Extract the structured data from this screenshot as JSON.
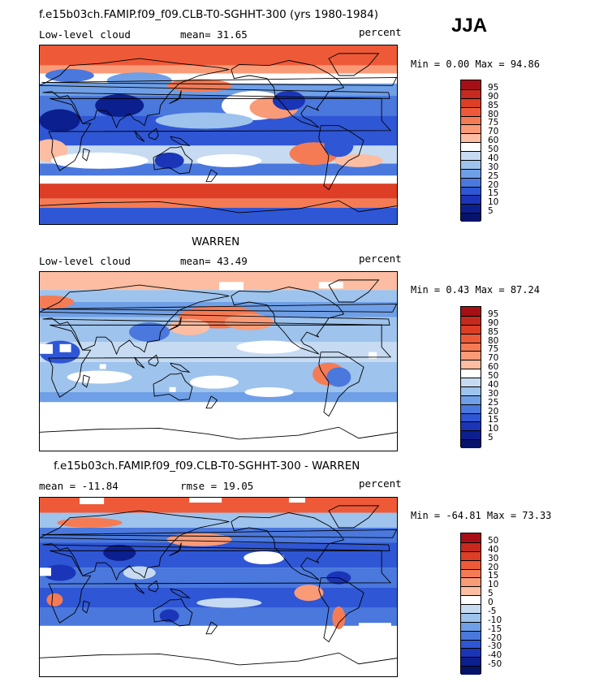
{
  "season": "JJA",
  "panels": [
    {
      "title": "f.e15b03ch.FAMIP.f09_f09.CLB-T0-SGHHT-300 (yrs 1980-1984)",
      "left_label": "Low-level cloud",
      "mid_label": "mean=  31.65",
      "right_label": "percent",
      "min_max": "Min =   0.00 Max =  94.86",
      "colorbar": {
        "labels": [
          "95",
          "90",
          "85",
          "80",
          "75",
          "70",
          "60",
          "50",
          "40",
          "30",
          "25",
          "20",
          "15",
          "10",
          "5"
        ],
        "colors": [
          "#a50f15",
          "#c62a1e",
          "#dd3e25",
          "#ee5a38",
          "#f57b55",
          "#fa9b78",
          "#fcbda2",
          "#ffffff",
          "#c6dbf2",
          "#9ec3ec",
          "#6f9fe6",
          "#4a78dd",
          "#2f56d4",
          "#1b35b8",
          "#0c1f8f",
          "#06136b"
        ]
      },
      "map_style": "model"
    },
    {
      "title": "WARREN",
      "left_label": "Low-level cloud",
      "mid_label": "mean=  43.49",
      "right_label": "percent",
      "min_max": "Min =   0.43 Max =  87.24",
      "colorbar": {
        "labels": [
          "95",
          "90",
          "85",
          "80",
          "75",
          "70",
          "60",
          "50",
          "40",
          "30",
          "25",
          "20",
          "15",
          "10",
          "5"
        ],
        "colors": [
          "#a50f15",
          "#c62a1e",
          "#dd3e25",
          "#ee5a38",
          "#f57b55",
          "#fa9b78",
          "#fcbda2",
          "#ffffff",
          "#c6dbf2",
          "#9ec3ec",
          "#6f9fe6",
          "#4a78dd",
          "#2f56d4",
          "#1b35b8",
          "#0c1f8f",
          "#06136b"
        ]
      },
      "map_style": "obs"
    },
    {
      "title": "f.e15b03ch.FAMIP.f09_f09.CLB-T0-SGHHT-300 - WARREN",
      "left_label": "mean = -11.84",
      "mid_label": "rmse =  19.05",
      "right_label": "percent",
      "min_max": "Min = -64.81 Max =  73.33",
      "colorbar": {
        "labels": [
          "50",
          "40",
          "30",
          "20",
          "15",
          "10",
          "5",
          "0",
          "-5",
          "-10",
          "-15",
          "-20",
          "-30",
          "-40",
          "-50"
        ],
        "colors": [
          "#a50f15",
          "#c62a1e",
          "#dd3e25",
          "#ee5a38",
          "#f57b55",
          "#fa9b78",
          "#fcbda2",
          "#ffffff",
          "#c6dbf2",
          "#9ec3ec",
          "#6f9fe6",
          "#4a78dd",
          "#2f56d4",
          "#1b35b8",
          "#0c1f8f",
          "#06136b"
        ]
      },
      "map_style": "diff"
    }
  ]
}
